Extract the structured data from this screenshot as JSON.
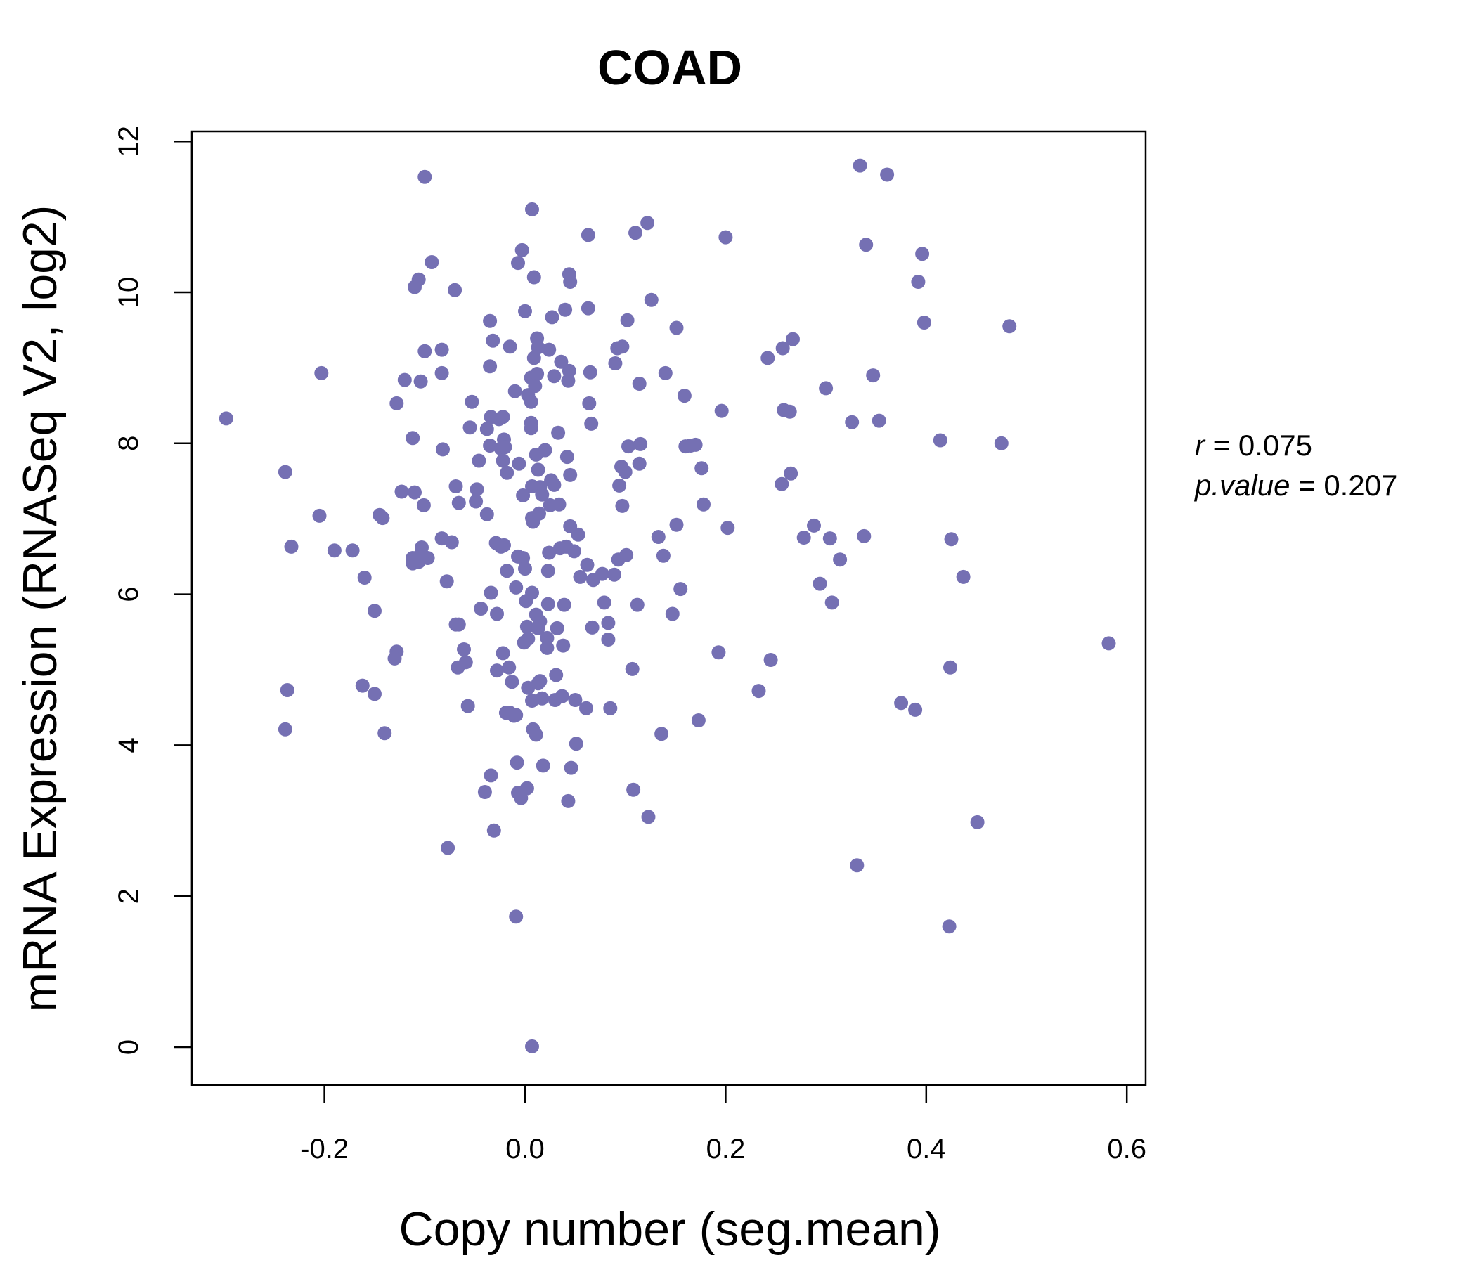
{
  "chart_data": {
    "type": "scatter",
    "title": "COAD",
    "xlabel": "Copy number (seg.mean)",
    "ylabel": "mRNA Expression (RNASeq V2, log2)",
    "xlim": [
      -0.3,
      0.6
    ],
    "ylim": [
      0,
      12
    ],
    "x_ticks": [
      -0.2,
      0.0,
      0.2,
      0.4,
      0.6
    ],
    "x_tick_labels": [
      "-0.2",
      "0.0",
      "0.2",
      "0.4",
      "0.6"
    ],
    "y_ticks": [
      0,
      2,
      4,
      6,
      8,
      10,
      12
    ],
    "y_tick_labels": [
      "0",
      "2",
      "4",
      "6",
      "8",
      "10",
      "12"
    ],
    "grid": false,
    "point_color": "#7570b3",
    "stats": {
      "r_symbol": "r",
      "r_value": "0.075",
      "p_symbol": "p.value",
      "p_value": "0.207"
    },
    "points": [
      [
        -0.298,
        8.33
      ],
      [
        -0.239,
        7.62
      ],
      [
        -0.233,
        6.63
      ],
      [
        -0.237,
        4.73
      ],
      [
        -0.239,
        4.21
      ],
      [
        -0.205,
        7.04
      ],
      [
        -0.203,
        8.93
      ],
      [
        -0.19,
        6.58
      ],
      [
        -0.172,
        6.58
      ],
      [
        -0.16,
        6.22
      ],
      [
        -0.15,
        5.78
      ],
      [
        -0.162,
        4.79
      ],
      [
        -0.15,
        4.68
      ],
      [
        -0.14,
        4.16
      ],
      [
        -0.145,
        7.05
      ],
      [
        -0.142,
        7.01
      ],
      [
        -0.128,
        8.53
      ],
      [
        -0.128,
        5.24
      ],
      [
        -0.13,
        5.15
      ],
      [
        -0.123,
        7.36
      ],
      [
        -0.12,
        8.84
      ],
      [
        -0.112,
        8.07
      ],
      [
        -0.11,
        7.35
      ],
      [
        -0.112,
        6.41
      ],
      [
        -0.106,
        6.43
      ],
      [
        -0.103,
        6.62
      ],
      [
        -0.105,
        6.51
      ],
      [
        -0.101,
        7.18
      ],
      [
        -0.112,
        6.48
      ],
      [
        -0.097,
        6.48
      ],
      [
        -0.1,
        11.53
      ],
      [
        -0.1,
        9.22
      ],
      [
        -0.104,
        8.82
      ],
      [
        -0.11,
        10.07
      ],
      [
        -0.106,
        10.17
      ],
      [
        -0.093,
        10.4
      ],
      [
        -0.083,
        8.93
      ],
      [
        -0.083,
        9.24
      ],
      [
        -0.082,
        7.92
      ],
      [
        -0.083,
        6.74
      ],
      [
        -0.078,
        6.17
      ],
      [
        -0.073,
        6.69
      ],
      [
        -0.07,
        10.03
      ],
      [
        -0.069,
        7.43
      ],
      [
        -0.066,
        7.21
      ],
      [
        -0.069,
        5.6
      ],
      [
        -0.066,
        5.6
      ],
      [
        -0.067,
        5.03
      ],
      [
        -0.061,
        5.27
      ],
      [
        -0.059,
        5.1
      ],
      [
        -0.057,
        4.52
      ],
      [
        -0.077,
        2.64
      ],
      [
        -0.055,
        8.21
      ],
      [
        -0.053,
        8.55
      ],
      [
        -0.049,
        7.23
      ],
      [
        -0.048,
        7.39
      ],
      [
        -0.046,
        7.77
      ],
      [
        -0.044,
        5.81
      ],
      [
        -0.038,
        7.06
      ],
      [
        -0.038,
        8.19
      ],
      [
        -0.034,
        8.35
      ],
      [
        -0.035,
        7.97
      ],
      [
        -0.035,
        9.02
      ],
      [
        -0.035,
        9.62
      ],
      [
        -0.032,
        9.36
      ],
      [
        -0.034,
        6.02
      ],
      [
        -0.029,
        6.68
      ],
      [
        -0.028,
        5.74
      ],
      [
        -0.028,
        4.99
      ],
      [
        -0.031,
        2.87
      ],
      [
        -0.034,
        3.6
      ],
      [
        -0.04,
        3.38
      ],
      [
        -0.026,
        8.32
      ],
      [
        -0.022,
        8.35
      ],
      [
        -0.024,
        7.93
      ],
      [
        -0.021,
        8.05
      ],
      [
        -0.022,
        7.77
      ],
      [
        -0.02,
        7.95
      ],
      [
        -0.018,
        7.61
      ],
      [
        -0.018,
        6.31
      ],
      [
        -0.021,
        6.65
      ],
      [
        -0.024,
        6.63
      ],
      [
        -0.022,
        5.22
      ],
      [
        -0.016,
        5.03
      ],
      [
        -0.013,
        4.84
      ],
      [
        -0.015,
        4.43
      ],
      [
        -0.019,
        4.43
      ],
      [
        -0.011,
        4.39
      ],
      [
        -0.009,
        4.4
      ],
      [
        -0.008,
        3.77
      ],
      [
        -0.007,
        3.37
      ],
      [
        -0.004,
        3.3
      ],
      [
        -0.009,
        1.73
      ],
      [
        -0.015,
        9.28
      ],
      [
        -0.01,
        8.69
      ],
      [
        -0.007,
        10.39
      ],
      [
        -0.003,
        10.56
      ],
      [
        0.0,
        9.75
      ],
      [
        -0.006,
        7.73
      ],
      [
        -0.002,
        7.31
      ],
      [
        -0.007,
        6.5
      ],
      [
        -0.002,
        6.48
      ],
      [
        0.0,
        6.34
      ],
      [
        -0.009,
        6.09
      ],
      [
        0.001,
        5.91
      ],
      [
        0.002,
        5.57
      ],
      [
        0.003,
        5.41
      ],
      [
        -0.001,
        5.36
      ],
      [
        0.003,
        8.64
      ],
      [
        0.006,
        8.87
      ],
      [
        0.006,
        8.55
      ],
      [
        0.006,
        8.27
      ],
      [
        0.006,
        8.2
      ],
      [
        0.007,
        7.43
      ],
      [
        0.007,
        7.01
      ],
      [
        0.008,
        6.96
      ],
      [
        0.007,
        6.02
      ],
      [
        0.003,
        4.76
      ],
      [
        0.007,
        4.59
      ],
      [
        0.008,
        4.21
      ],
      [
        0.011,
        4.14
      ],
      [
        0.002,
        3.43
      ],
      [
        0.007,
        0.01
      ],
      [
        0.007,
        11.1
      ],
      [
        0.009,
        10.2
      ],
      [
        0.009,
        9.13
      ],
      [
        0.012,
        9.39
      ],
      [
        0.013,
        9.27
      ],
      [
        0.012,
        8.92
      ],
      [
        0.01,
        8.76
      ],
      [
        0.011,
        7.85
      ],
      [
        0.013,
        7.65
      ],
      [
        0.015,
        7.42
      ],
      [
        0.017,
        7.32
      ],
      [
        0.014,
        7.07
      ],
      [
        0.011,
        5.73
      ],
      [
        0.015,
        5.64
      ],
      [
        0.013,
        5.55
      ],
      [
        0.015,
        4.85
      ],
      [
        0.017,
        4.62
      ],
      [
        0.013,
        4.82
      ],
      [
        0.018,
        3.73
      ],
      [
        0.02,
        7.91
      ],
      [
        0.022,
        5.42
      ],
      [
        0.022,
        5.29
      ],
      [
        0.023,
        6.31
      ],
      [
        0.023,
        5.87
      ],
      [
        0.024,
        6.55
      ],
      [
        0.024,
        9.24
      ],
      [
        0.025,
        7.18
      ],
      [
        0.026,
        7.51
      ],
      [
        0.027,
        9.67
      ],
      [
        0.029,
        8.89
      ],
      [
        0.029,
        7.45
      ],
      [
        0.03,
        4.6
      ],
      [
        0.031,
        4.93
      ],
      [
        0.032,
        5.55
      ],
      [
        0.033,
        8.14
      ],
      [
        0.034,
        7.19
      ],
      [
        0.035,
        6.61
      ],
      [
        0.036,
        9.08
      ],
      [
        0.037,
        4.65
      ],
      [
        0.038,
        5.32
      ],
      [
        0.039,
        5.86
      ],
      [
        0.04,
        9.77
      ],
      [
        0.041,
        6.63
      ],
      [
        0.042,
        7.82
      ],
      [
        0.043,
        8.83
      ],
      [
        0.043,
        3.26
      ],
      [
        0.044,
        8.96
      ],
      [
        0.044,
        10.24
      ],
      [
        0.045,
        10.14
      ],
      [
        0.045,
        6.9
      ],
      [
        0.045,
        7.58
      ],
      [
        0.046,
        3.7
      ],
      [
        0.049,
        6.57
      ],
      [
        0.05,
        4.6
      ],
      [
        0.051,
        4.02
      ],
      [
        0.053,
        6.79
      ],
      [
        0.055,
        6.23
      ],
      [
        0.061,
        4.49
      ],
      [
        0.062,
        6.39
      ],
      [
        0.063,
        9.79
      ],
      [
        0.063,
        10.76
      ],
      [
        0.064,
        8.53
      ],
      [
        0.065,
        8.94
      ],
      [
        0.066,
        8.26
      ],
      [
        0.067,
        5.56
      ],
      [
        0.068,
        6.19
      ],
      [
        0.077,
        6.27
      ],
      [
        0.079,
        5.89
      ],
      [
        0.083,
        5.62
      ],
      [
        0.083,
        5.4
      ],
      [
        0.085,
        4.49
      ],
      [
        0.089,
        6.26
      ],
      [
        0.09,
        9.06
      ],
      [
        0.092,
        9.26
      ],
      [
        0.093,
        6.46
      ],
      [
        0.094,
        7.44
      ],
      [
        0.096,
        7.69
      ],
      [
        0.097,
        7.17
      ],
      [
        0.097,
        9.28
      ],
      [
        0.1,
        7.62
      ],
      [
        0.101,
        6.52
      ],
      [
        0.102,
        9.63
      ],
      [
        0.103,
        7.96
      ],
      [
        0.107,
        5.01
      ],
      [
        0.108,
        3.41
      ],
      [
        0.11,
        10.79
      ],
      [
        0.112,
        5.86
      ],
      [
        0.114,
        8.79
      ],
      [
        0.114,
        7.73
      ],
      [
        0.115,
        7.99
      ],
      [
        0.122,
        10.92
      ],
      [
        0.123,
        3.05
      ],
      [
        0.126,
        9.9
      ],
      [
        0.133,
        6.76
      ],
      [
        0.136,
        4.15
      ],
      [
        0.138,
        6.51
      ],
      [
        0.14,
        8.93
      ],
      [
        0.147,
        5.74
      ],
      [
        0.151,
        9.53
      ],
      [
        0.151,
        6.92
      ],
      [
        0.155,
        6.07
      ],
      [
        0.159,
        8.63
      ],
      [
        0.16,
        7.96
      ],
      [
        0.165,
        7.97
      ],
      [
        0.17,
        7.98
      ],
      [
        0.173,
        4.33
      ],
      [
        0.176,
        7.67
      ],
      [
        0.178,
        7.19
      ],
      [
        0.193,
        5.23
      ],
      [
        0.196,
        8.43
      ],
      [
        0.2,
        10.73
      ],
      [
        0.202,
        6.88
      ],
      [
        0.233,
        4.72
      ],
      [
        0.242,
        9.13
      ],
      [
        0.245,
        5.13
      ],
      [
        0.256,
        7.46
      ],
      [
        0.257,
        9.26
      ],
      [
        0.258,
        8.44
      ],
      [
        0.264,
        8.42
      ],
      [
        0.265,
        7.6
      ],
      [
        0.267,
        9.38
      ],
      [
        0.278,
        6.75
      ],
      [
        0.288,
        6.91
      ],
      [
        0.294,
        6.14
      ],
      [
        0.3,
        8.73
      ],
      [
        0.304,
        6.74
      ],
      [
        0.306,
        5.89
      ],
      [
        0.314,
        6.46
      ],
      [
        0.326,
        8.28
      ],
      [
        0.331,
        2.41
      ],
      [
        0.334,
        11.68
      ],
      [
        0.338,
        6.77
      ],
      [
        0.34,
        10.63
      ],
      [
        0.347,
        8.9
      ],
      [
        0.353,
        8.3
      ],
      [
        0.361,
        11.56
      ],
      [
        0.375,
        4.56
      ],
      [
        0.389,
        4.47
      ],
      [
        0.392,
        10.14
      ],
      [
        0.396,
        10.51
      ],
      [
        0.398,
        9.6
      ],
      [
        0.414,
        8.04
      ],
      [
        0.423,
        1.6
      ],
      [
        0.424,
        5.03
      ],
      [
        0.425,
        6.73
      ],
      [
        0.437,
        6.23
      ],
      [
        0.451,
        2.98
      ],
      [
        0.475,
        8.0
      ],
      [
        0.483,
        9.55
      ],
      [
        0.582,
        5.35
      ]
    ]
  }
}
